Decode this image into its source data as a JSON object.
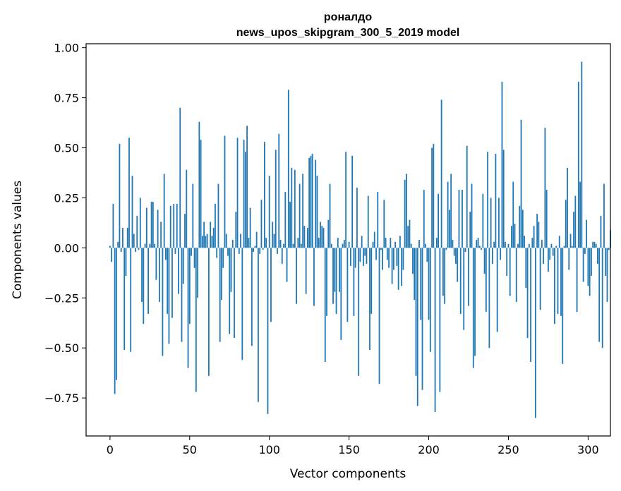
{
  "chart_data": {
    "type": "bar",
    "title": [
      "роналдо",
      "news_upos_skipgram_300_5_2019 model"
    ],
    "xlabel": "Vector components",
    "ylabel": "Components values",
    "xlim": [
      -15,
      314
    ],
    "ylim": [
      -0.94,
      1.02
    ],
    "xticks": [
      0,
      50,
      100,
      150,
      200,
      250,
      300
    ],
    "yticks": [
      -0.75,
      -0.5,
      -0.25,
      0.0,
      0.25,
      0.5,
      0.75,
      1.0
    ],
    "ytick_labels": [
      "−0.75",
      "−0.50",
      "−0.25",
      "0.00",
      "0.25",
      "0.50",
      "0.75",
      "1.00"
    ],
    "bar_color": "#1f77b4",
    "values": [
      0.01,
      -0.07,
      0.22,
      -0.73,
      -0.66,
      0.03,
      0.52,
      -0.02,
      0.1,
      -0.51,
      -0.14,
      0.1,
      0.55,
      -0.52,
      0.36,
      0.07,
      -0.02,
      0.16,
      -0.01,
      0.25,
      -0.27,
      -0.38,
      0.02,
      0.2,
      -0.33,
      0.02,
      0.23,
      0.23,
      0.02,
      -0.16,
      0.19,
      -0.27,
      0.13,
      -0.54,
      0.37,
      -0.06,
      -0.33,
      -0.48,
      0.21,
      -0.35,
      0.22,
      -0.03,
      0.22,
      -0.23,
      0.7,
      -0.47,
      -0.18,
      0.17,
      0.39,
      -0.6,
      -0.38,
      -0.04,
      0.32,
      -0.1,
      -0.72,
      -0.25,
      0.63,
      0.54,
      0.06,
      0.13,
      0.06,
      0.07,
      -0.64,
      0.13,
      0.06,
      0.1,
      0.22,
      -0.05,
      0.32,
      -0.47,
      -0.26,
      -0.1,
      0.56,
      0.07,
      -0.04,
      -0.43,
      -0.22,
      0.04,
      -0.45,
      0.18,
      0.55,
      -0.03,
      0.07,
      -0.56,
      0.54,
      0.48,
      0.61,
      0.05,
      0.2,
      -0.49,
      -0.02,
      0.01,
      0.08,
      -0.77,
      -0.03,
      0.24,
      -0.01,
      0.53,
      0.05,
      -0.83,
      0.36,
      -0.37,
      0.13,
      0.07,
      0.49,
      -0.03,
      0.57,
      0.04,
      -0.08,
      0.02,
      0.28,
      -0.17,
      0.79,
      0.23,
      0.4,
      0.02,
      0.39,
      -0.28,
      0.05,
      0.32,
      0.02,
      0.37,
      0.11,
      -0.23,
      0.1,
      0.45,
      0.46,
      0.47,
      -0.29,
      0.44,
      0.36,
      0.05,
      0.13,
      0.11,
      0.1,
      -0.57,
      -0.34,
      0.14,
      0.32,
      0.02,
      -0.28,
      -0.22,
      -0.33,
      0.05,
      -0.22,
      -0.46,
      0.02,
      0.04,
      0.48,
      -0.37,
      0.03,
      -0.09,
      0.46,
      -0.34,
      -0.1,
      0.3,
      -0.64,
      -0.07,
      0.06,
      -0.09,
      -0.04,
      -0.08,
      0.26,
      -0.51,
      -0.33,
      0.03,
      0.08,
      -0.06,
      0.28,
      -0.68,
      -0.01,
      -0.11,
      0.24,
      0.05,
      -0.06,
      -0.1,
      0.05,
      -0.18,
      -0.11,
      0.03,
      -0.09,
      -0.21,
      0.06,
      -0.19,
      -0.11,
      0.34,
      0.37,
      0.11,
      0.14,
      0.02,
      -0.13,
      -0.26,
      -0.64,
      -0.79,
      0.04,
      -0.36,
      -0.71,
      0.29,
      0.02,
      -0.07,
      -0.36,
      -0.52,
      0.5,
      0.52,
      -0.82,
      0.05,
      0.27,
      -0.72,
      0.74,
      -0.24,
      -0.28,
      -0.01,
      0.33,
      0.19,
      0.37,
      0.04,
      -0.04,
      -0.08,
      -0.17,
      0.29,
      -0.33,
      0.29,
      -0.41,
      -0.02,
      0.51,
      -0.29,
      0.18,
      0.32,
      -0.6,
      -0.54,
      0.04,
      0.05,
      0.01,
      -0.01,
      0.27,
      -0.13,
      -0.32,
      0.48,
      -0.5,
      0.25,
      -0.08,
      0.03,
      0.47,
      -0.42,
      0.25,
      -0.06,
      0.83,
      0.49,
      0.03,
      -0.14,
      0.02,
      -0.24,
      0.11,
      0.33,
      0.12,
      -0.27,
      0.02,
      0.21,
      0.64,
      0.19,
      0.06,
      -0.2,
      -0.45,
      0.02,
      -0.57,
      0.05,
      0.11,
      -0.85,
      0.17,
      0.13,
      -0.31,
      0.04,
      -0.08,
      0.6,
      0.29,
      -0.12,
      -0.06,
      0.02,
      -0.04,
      -0.38,
      0.01,
      -0.33,
      0.06,
      -0.34,
      -0.58,
      0.01,
      0.24,
      0.4,
      -0.11,
      0.07,
      0.01,
      0.18,
      0.26,
      -0.32,
      0.83,
      0.33,
      0.93,
      -0.17,
      -0.03,
      0.14,
      -0.19,
      -0.24,
      -0.14,
      0.03,
      0.03,
      0.02,
      -0.08,
      -0.47,
      0.16,
      -0.5,
      0.32,
      -0.14,
      -0.27,
      -0.01,
      0.09
    ]
  }
}
